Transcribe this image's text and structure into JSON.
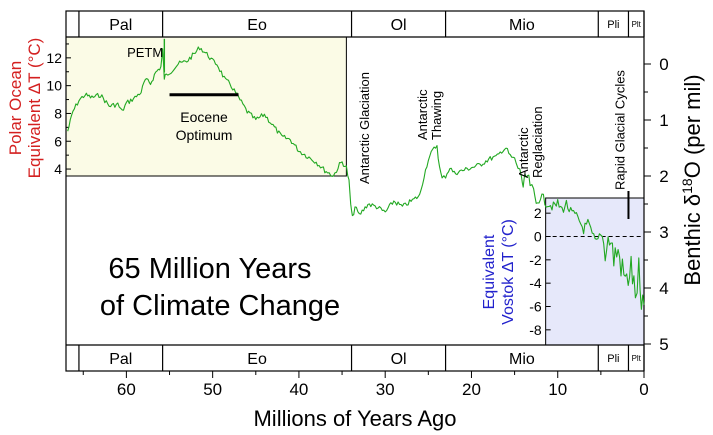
{
  "chart_data": {
    "type": "line",
    "title": "65 Million Years of Climate Change",
    "title_lines": [
      "65 Million Years",
      "of Climate Change"
    ],
    "xlabel": "Millions of Years Ago",
    "xlim": [
      67,
      0
    ],
    "x_ticks": [
      60,
      50,
      40,
      30,
      20,
      10,
      0
    ],
    "x_tick_labels": [
      "60",
      "50",
      "40",
      "30",
      "20",
      "10",
      "0"
    ],
    "y_right": {
      "label": "Benthic δ 18O (per mil)",
      "label_parts": [
        "Benthic δ",
        "18",
        "O (per mil)"
      ],
      "lim": [
        -0.6,
        5.0
      ],
      "inverted": true,
      "ticks": [
        0,
        1,
        2,
        3,
        4,
        5
      ],
      "tick_labels": [
        "0",
        "1",
        "2",
        "3",
        "4",
        "5"
      ]
    },
    "y_left_inset": {
      "label_lines": [
        "Polar Ocean",
        "Equivalent  ΔT (°C)"
      ],
      "color": "#d42020",
      "x_range": [
        67,
        34.5
      ],
      "lim": [
        3.5,
        13.5
      ],
      "ticks": [
        4,
        6,
        8,
        10,
        12
      ],
      "tick_labels": [
        "4",
        "6",
        "8",
        "10",
        "12"
      ],
      "background": "#fbfbe6"
    },
    "y_right_inset": {
      "label_lines": [
        "Equivalent",
        "Vostok  ΔT (°C)"
      ],
      "color": "#2222cc",
      "x_range": [
        11.4,
        0
      ],
      "lim": [
        -9.3,
        3.3
      ],
      "ticks": [
        2,
        0,
        -2,
        -4,
        -6,
        -8
      ],
      "tick_labels": [
        "2",
        "0",
        "-2",
        "-4",
        "-6",
        "-8"
      ],
      "background": "#e6e8fa"
    },
    "epochs": [
      {
        "name": "Pal",
        "start": 65.5,
        "end": 55.8
      },
      {
        "name": "Eo",
        "start": 55.8,
        "end": 33.9
      },
      {
        "name": "Ol",
        "start": 33.9,
        "end": 23.0
      },
      {
        "name": "Mio",
        "start": 23.0,
        "end": 5.3
      },
      {
        "name": "Pli",
        "start": 5.3,
        "end": 1.8
      },
      {
        "name": "Plt",
        "start": 1.8,
        "end": 0
      }
    ],
    "annotations": [
      {
        "text": "PETM",
        "x": 55.5,
        "y": 0
      },
      {
        "text": "Eocene Optimum",
        "range": [
          55,
          47
        ],
        "y": 0.55
      },
      {
        "text": "Antarctic Glaciation",
        "x": 33.5
      },
      {
        "text": "Antarctic Thawing",
        "x": 24.8
      },
      {
        "text": "Antarctic Reglaciation",
        "x": 11.0
      },
      {
        "text": "Rapid Glacial Cycles",
        "x": 1.8
      }
    ],
    "series": [
      {
        "name": "Benthic δ18O",
        "color": "#22a822",
        "x": [
          66.8,
          66.2,
          65.5,
          64.8,
          64.0,
          63.0,
          62.0,
          61.0,
          60.5,
          60.0,
          59.0,
          58.3,
          57.8,
          57.2,
          56.6,
          56.0,
          55.8,
          55.6,
          55.4,
          55.0,
          54.0,
          53.0,
          52.0,
          51.5,
          51.0,
          50.5,
          50.0,
          49.5,
          49.0,
          48.5,
          48.0,
          47.0,
          46.0,
          45.0,
          44.0,
          43.0,
          42.0,
          41.0,
          40.0,
          39.0,
          38.0,
          37.0,
          36.0,
          35.3,
          35.0,
          34.5,
          34.2,
          34.0,
          33.8,
          33.5,
          33.0,
          32.5,
          32.0,
          31.0,
          30.0,
          29.0,
          28.0,
          27.0,
          26.0,
          25.5,
          25.0,
          24.5,
          24.0,
          23.7,
          23.4,
          23.0,
          22.5,
          22.0,
          21.0,
          20.0,
          19.0,
          18.0,
          17.0,
          16.5,
          16.0,
          15.5,
          15.0,
          14.6,
          14.2,
          14.0,
          13.8,
          13.5,
          13.2,
          12.8,
          12.5,
          12.0,
          11.5,
          11.0,
          10.5,
          10.0,
          9.5,
          9.0,
          8.5,
          8.0,
          7.5,
          7.0,
          6.5,
          6.0,
          5.5,
          5.0,
          4.5,
          4.0,
          3.5,
          3.0,
          2.5,
          2.0,
          1.5,
          1.0,
          0.6,
          0.3,
          0.0
        ],
        "y": [
          1.2,
          0.85,
          0.65,
          0.55,
          0.6,
          0.55,
          0.75,
          0.72,
          0.85,
          0.7,
          0.6,
          0.5,
          0.28,
          0.35,
          0.15,
          0.05,
          -0.25,
          0.25,
          0.2,
          0.15,
          0.0,
          -0.05,
          -0.2,
          -0.3,
          -0.22,
          -0.15,
          -0.05,
          0.0,
          0.15,
          0.3,
          0.35,
          0.6,
          0.85,
          1.0,
          0.9,
          1.1,
          1.3,
          1.35,
          1.55,
          1.65,
          1.75,
          1.9,
          2.0,
          1.8,
          1.75,
          1.85,
          2.1,
          2.5,
          2.75,
          2.55,
          2.7,
          2.6,
          2.5,
          2.55,
          2.65,
          2.45,
          2.55,
          2.45,
          2.35,
          2.0,
          1.7,
          1.55,
          1.45,
          1.85,
          2.05,
          2.0,
          1.85,
          1.95,
          1.9,
          1.85,
          1.8,
          1.7,
          1.65,
          1.55,
          1.5,
          1.65,
          1.7,
          1.85,
          2.0,
          2.2,
          2.05,
          2.0,
          2.15,
          2.3,
          2.5,
          2.35,
          2.45,
          2.5,
          2.55,
          2.5,
          2.6,
          2.5,
          2.65,
          2.7,
          2.8,
          2.95,
          2.85,
          3.05,
          3.2,
          3.0,
          3.3,
          3.1,
          3.45,
          3.35,
          3.7,
          3.9,
          3.6,
          4.2,
          3.7,
          4.5,
          4.3
        ]
      }
    ]
  }
}
